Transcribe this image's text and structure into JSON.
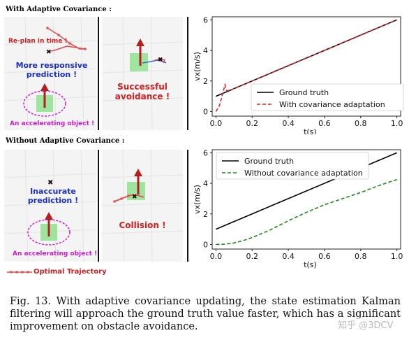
{
  "top_section": {
    "heading": "With Adaptive Covariance :",
    "replan_label": "Re-plan in time !",
    "responsive_label": "More responsive prediction !",
    "object_label": "An accelerating object !",
    "avoidance_label": "Successful avoidance !"
  },
  "bottom_section": {
    "heading": "Without Adaptive Covariance :",
    "inaccurate_label": "Inaccurate prediction !",
    "object_label": "An accelerating object !",
    "collision_label": "Collision !",
    "trajectory_legend": "Optimal Trajectory"
  },
  "caption": {
    "text": "Fig. 13.   With adaptive covariance updating, the state estimation Kalman filtering will approach the ground truth value faster, which has a significant improvement on obstacle avoidance."
  },
  "watermark": "知乎 @3DCV",
  "colors": {
    "red_label": "#d32020",
    "blue_label": "#1a2fc9",
    "magenta_label": "#d21ad2",
    "ground_truth": "#000000",
    "adaptive": "#d62728",
    "non_adaptive": "#1a8a1a"
  },
  "chart_data": [
    {
      "type": "line",
      "xlabel": "t(s)",
      "ylabel": "vx(m/s)",
      "xlim": [
        0,
        1
      ],
      "ylim": [
        -0.3,
        6.2
      ],
      "xticks": [
        "0.0",
        "0.2",
        "0.4",
        "0.6",
        "0.8",
        "1.0"
      ],
      "yticks": [
        "0",
        "2",
        "4",
        "6"
      ],
      "legend_position": "bottom-right",
      "series": [
        {
          "name": "Ground truth",
          "style": "solid",
          "color": "#000000",
          "x": [
            0,
            1
          ],
          "y": [
            1,
            6
          ]
        },
        {
          "name": "With covariance adaptation",
          "style": "dashed",
          "color": "#d62728",
          "x": [
            0,
            0.02,
            0.04,
            0.05,
            0.06,
            0.08,
            0.1,
            0.2,
            0.3,
            0.4,
            0.5,
            0.6,
            0.7,
            0.8,
            0.9,
            1.0
          ],
          "y": [
            0,
            0.4,
            1.3,
            1.75,
            1.35,
            1.4,
            1.5,
            2.0,
            2.5,
            3.0,
            3.5,
            4.0,
            4.5,
            5.0,
            5.5,
            6.0
          ]
        }
      ]
    },
    {
      "type": "line",
      "xlabel": "t(s)",
      "ylabel": "vx(m/s)",
      "xlim": [
        0,
        1
      ],
      "ylim": [
        -0.3,
        6.2
      ],
      "xticks": [
        "0.0",
        "0.2",
        "0.4",
        "0.6",
        "0.8",
        "1.0"
      ],
      "yticks": [
        "0",
        "2",
        "4",
        "6"
      ],
      "legend_position": "top-left",
      "series": [
        {
          "name": "Ground truth",
          "style": "solid",
          "color": "#000000",
          "x": [
            0,
            1
          ],
          "y": [
            1,
            6
          ]
        },
        {
          "name": "Without covariance adaptation",
          "style": "dashed",
          "color": "#1a8a1a",
          "x": [
            0,
            0.05,
            0.1,
            0.15,
            0.2,
            0.25,
            0.3,
            0.35,
            0.4,
            0.5,
            0.6,
            0.7,
            0.8,
            0.9,
            1.0
          ],
          "y": [
            0,
            0.02,
            0.1,
            0.25,
            0.45,
            0.7,
            0.95,
            1.25,
            1.55,
            2.1,
            2.6,
            3.0,
            3.4,
            3.85,
            4.25
          ]
        }
      ]
    }
  ]
}
